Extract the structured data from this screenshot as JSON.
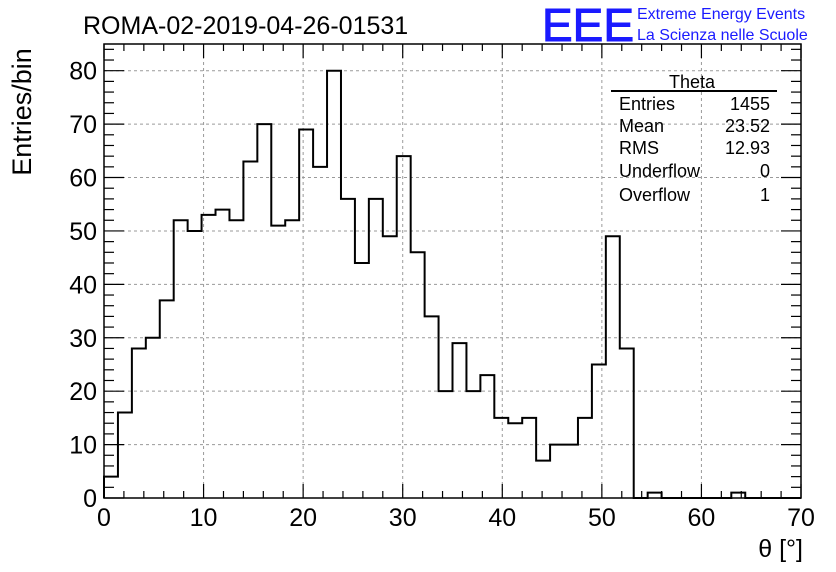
{
  "header": {
    "run_title": "ROMA-02-2019-04-26-01531",
    "logo_letters": "EEE",
    "logo_line1": "Extreme Energy Events",
    "logo_line2": "La Scienza nelle Scuole",
    "brand_color": "#1a1aff"
  },
  "stats": {
    "title": "Theta",
    "rows": [
      {
        "label": "Entries",
        "value": "1455"
      },
      {
        "label": "Mean",
        "value": "23.52"
      },
      {
        "label": "RMS",
        "value": "12.93"
      },
      {
        "label": "Underflow",
        "value": "0"
      },
      {
        "label": "Overflow",
        "value": "1"
      }
    ]
  },
  "chart_data": {
    "type": "histogram",
    "title": "ROMA-02-2019-04-26-01531",
    "xlabel": "θ [°]",
    "ylabel": "Entries/bin",
    "xlim": [
      0,
      70
    ],
    "ylim": [
      0,
      85
    ],
    "grid": true,
    "bin_width": 1.4,
    "x_ticks": [
      0,
      10,
      20,
      30,
      40,
      50,
      60,
      70
    ],
    "y_ticks": [
      0,
      10,
      20,
      30,
      40,
      50,
      60,
      70,
      80
    ],
    "values": [
      4,
      16,
      28,
      30,
      37,
      52,
      50,
      53,
      54,
      52,
      63,
      70,
      51,
      52,
      69,
      62,
      80,
      56,
      44,
      56,
      49,
      64,
      46,
      34,
      20,
      29,
      20,
      23,
      15,
      14,
      15,
      7,
      10,
      10,
      15,
      25,
      49,
      28,
      0,
      1,
      0,
      0,
      0,
      0,
      0,
      1,
      0,
      0,
      0,
      0
    ]
  }
}
